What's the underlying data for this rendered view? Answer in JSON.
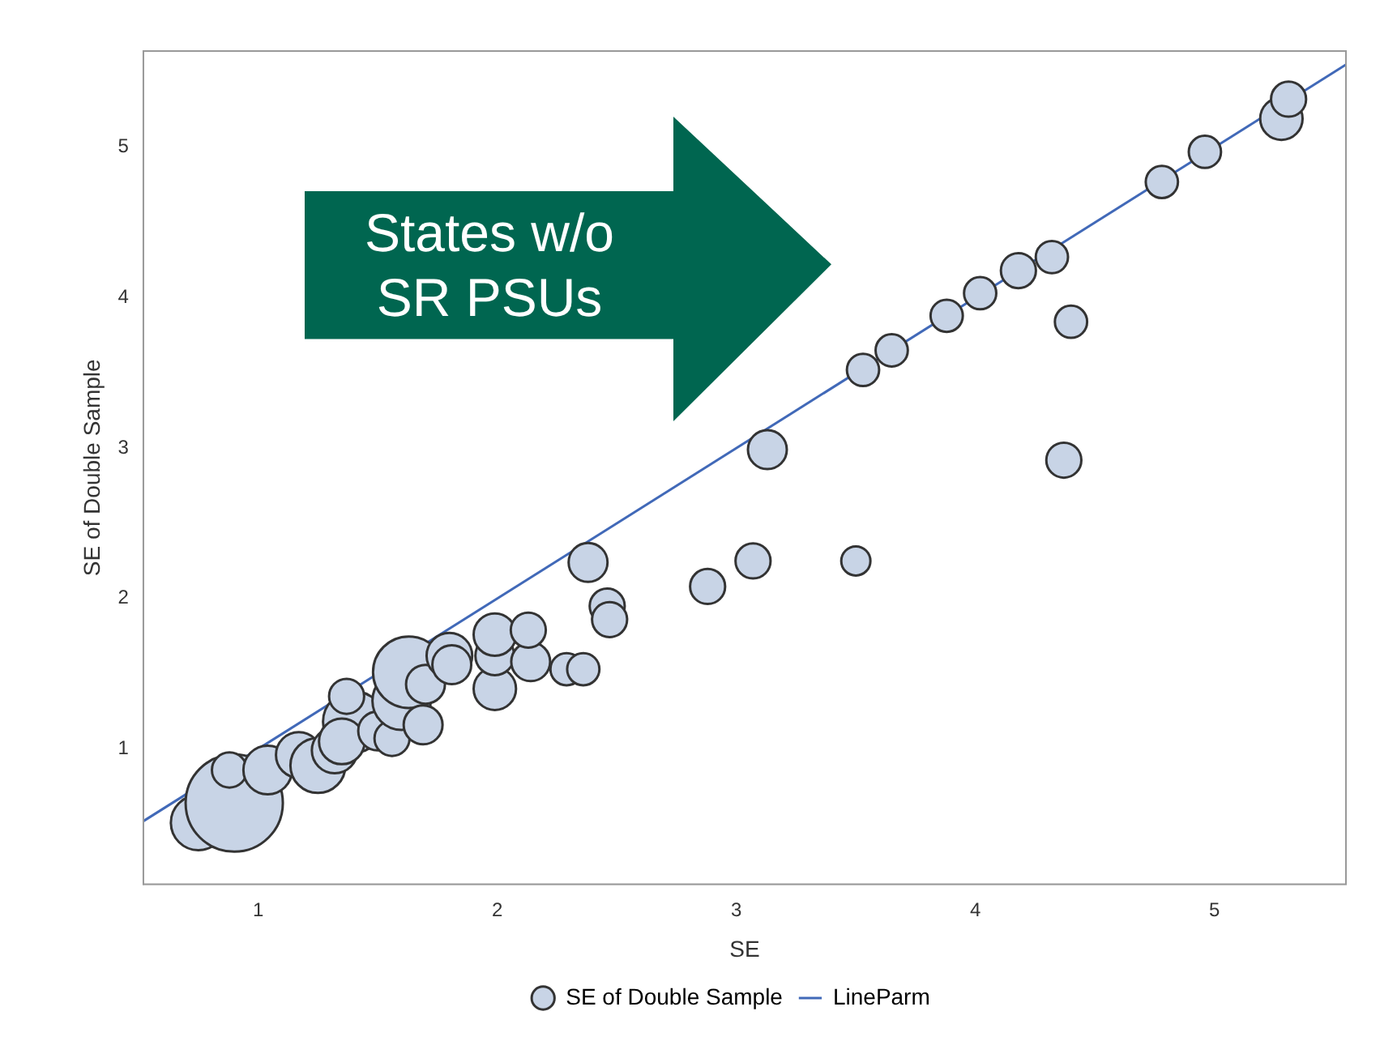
{
  "chart_data": {
    "type": "bubble",
    "xlabel": "SE",
    "ylabel": "SE of Double Sample",
    "xlim": [
      0.52,
      5.55
    ],
    "ylim": [
      0.1,
      5.64
    ],
    "xticks": [
      1,
      2,
      3,
      4,
      5
    ],
    "yticks": [
      1,
      2,
      3,
      4,
      5
    ],
    "grid": false,
    "legend": "bottom",
    "annotations": [
      "States w/o SR PSUs"
    ],
    "series": [
      {
        "name": "SE of Double Sample",
        "type": "bubble",
        "color": "#c8d4e6",
        "marker": "circle",
        "x": [
          0.75,
          0.9,
          0.88,
          1.04,
          1.17,
          1.25,
          1.32,
          1.4,
          1.37,
          1.35,
          1.5,
          1.56,
          1.6,
          1.63,
          1.69,
          1.7,
          1.8,
          1.81,
          1.99,
          1.99,
          1.99,
          2.14,
          2.13,
          2.29,
          2.36,
          2.38,
          2.46,
          2.47,
          2.88,
          3.07,
          3.13,
          3.5,
          3.53,
          3.65,
          3.88,
          4.02,
          4.18,
          4.32,
          4.4,
          4.37,
          4.78,
          4.96,
          5.28,
          5.31
        ],
        "values": [
          0.51,
          0.64,
          0.86,
          0.86,
          0.96,
          0.89,
          0.99,
          1.18,
          1.35,
          1.05,
          1.12,
          1.07,
          1.32,
          1.51,
          1.16,
          1.43,
          1.62,
          1.56,
          1.4,
          1.62,
          1.76,
          1.58,
          1.79,
          1.53,
          1.53,
          2.24,
          1.95,
          1.86,
          2.08,
          2.25,
          2.99,
          2.25,
          3.52,
          3.65,
          3.88,
          4.03,
          4.18,
          4.27,
          3.84,
          2.92,
          4.77,
          4.97,
          5.19,
          5.32
        ],
        "sizes": [
          0.32,
          1,
          0.13,
          0.25,
          0.22,
          0.32,
          0.22,
          0.4,
          0.13,
          0.22,
          0.16,
          0.13,
          0.36,
          0.54,
          0.16,
          0.16,
          0.22,
          0.16,
          0.19,
          0.16,
          0.19,
          0.16,
          0.13,
          0.11,
          0.11,
          0.16,
          0.13,
          0.13,
          0.13,
          0.13,
          0.16,
          0.09,
          0.11,
          0.11,
          0.11,
          0.11,
          0.13,
          0.11,
          0.11,
          0.13,
          0.11,
          0.11,
          0.19,
          0.13
        ]
      },
      {
        "name": "LineParm",
        "type": "line",
        "color": "#4169b8",
        "marker": "none",
        "line_style": "solid",
        "x": [
          0.52,
          5.55
        ],
        "values": [
          0.52,
          5.55
        ]
      }
    ]
  }
}
